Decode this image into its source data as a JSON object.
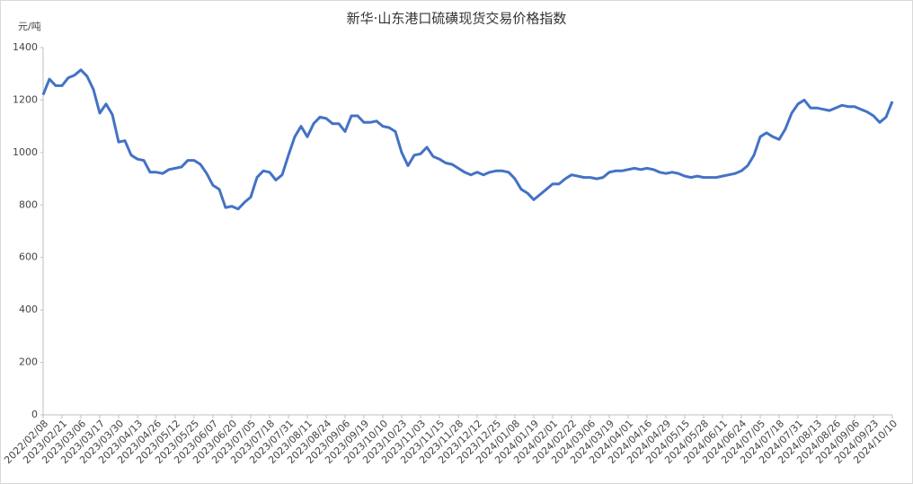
{
  "chart_data": {
    "type": "line",
    "title": "新华·山东港口硫磺现货交易价格指数",
    "y_label": "元/吨",
    "categories": [
      "2022/02/08",
      null,
      null,
      "2023/02/21",
      null,
      null,
      "2023/03/06",
      null,
      null,
      "2023/03/17",
      null,
      null,
      "2023/03/30",
      null,
      null,
      "2023/04/13",
      null,
      null,
      "2023/04/26",
      null,
      null,
      "2023/05/12",
      null,
      null,
      "2023/05/25",
      null,
      null,
      "2023/06/07",
      null,
      null,
      "2023/06/20",
      null,
      null,
      "2023/07/05",
      null,
      null,
      "2023/07/18",
      null,
      null,
      "2023/07/31",
      null,
      null,
      "2023/08/11",
      null,
      null,
      "2023/08/24",
      null,
      null,
      "2023/09/06",
      null,
      null,
      "2023/09/19",
      null,
      null,
      "2023/10/10",
      null,
      null,
      "2023/10/23",
      null,
      null,
      "2023/11/03",
      null,
      null,
      "2023/11/15",
      null,
      null,
      "2023/11/28",
      null,
      null,
      "2023/12/12",
      null,
      null,
      "2023/12/25",
      null,
      null,
      "2024/01/08",
      null,
      null,
      "2024/01/19",
      null,
      null,
      "2024/02/01",
      null,
      null,
      "2024/02/22",
      null,
      null,
      "2024/03/06",
      null,
      null,
      "2024/03/19",
      null,
      null,
      "2024/04/01",
      null,
      null,
      "2024/04/16",
      null,
      null,
      "2024/04/29",
      null,
      null,
      "2024/05/15",
      null,
      null,
      "2024/05/28",
      null,
      null,
      "2024/06/11",
      null,
      null,
      "2024/06/24",
      null,
      null,
      "2024/07/05",
      null,
      null,
      "2024/07/18",
      null,
      null,
      "2024/07/31",
      null,
      null,
      "2024/08/13",
      null,
      null,
      "2024/08/26",
      null,
      null,
      "2024/09/06",
      null,
      null,
      "2024/09/23",
      null,
      null,
      "2024/10/10"
    ],
    "series": [
      {
        "color": "#4472c4",
        "values": [
          1220,
          1280,
          1255,
          1255,
          1285,
          1295,
          1315,
          1290,
          1240,
          1150,
          1185,
          1145,
          1040,
          1045,
          990,
          975,
          970,
          925,
          925,
          920,
          935,
          940,
          945,
          970,
          970,
          955,
          920,
          875,
          860,
          790,
          795,
          785,
          810,
          830,
          905,
          930,
          925,
          895,
          915,
          990,
          1060,
          1100,
          1060,
          1110,
          1135,
          1130,
          1110,
          1110,
          1080,
          1140,
          1140,
          1115,
          1115,
          1120,
          1100,
          1095,
          1080,
          1000,
          950,
          990,
          995,
          1020,
          985,
          975,
          960,
          955,
          940,
          925,
          915,
          925,
          915,
          925,
          930,
          930,
          925,
          900,
          860,
          845,
          820,
          840,
          860,
          880,
          880,
          900,
          915,
          910,
          905,
          905,
          900,
          905,
          925,
          930,
          930,
          935,
          940,
          935,
          940,
          935,
          925,
          920,
          925,
          920,
          910,
          905,
          910,
          905,
          905,
          905,
          910,
          915,
          920,
          930,
          950,
          990,
          1060,
          1075,
          1060,
          1050,
          1090,
          1150,
          1185,
          1200,
          1170,
          1170,
          1165,
          1160,
          1170,
          1180,
          1175,
          1175,
          1165,
          1155,
          1140,
          1115,
          1135,
          1195
        ]
      }
    ],
    "ylim": [
      0,
      1400
    ],
    "yticks": [
      0,
      200,
      400,
      600,
      800,
      1000,
      1200,
      1400
    ],
    "grid": false
  }
}
